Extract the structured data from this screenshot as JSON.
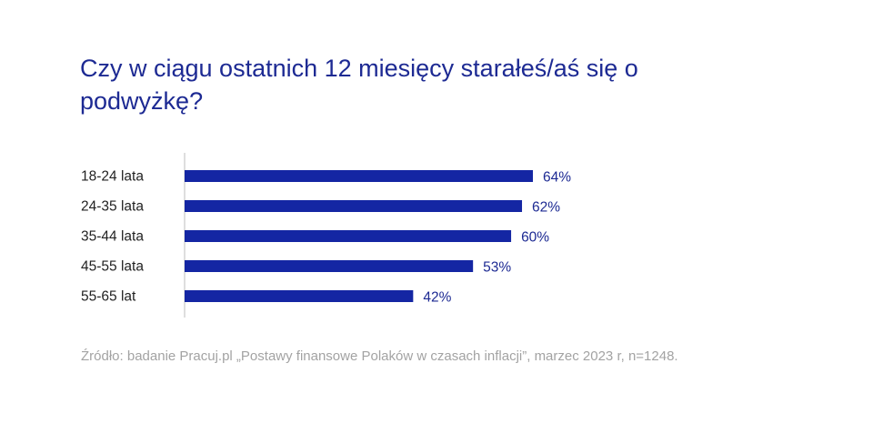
{
  "colors": {
    "bar": "#1426a3",
    "title": "#1d2a93",
    "axis": "#c8c8c8",
    "source": "#a3a3a3"
  },
  "chart_data": {
    "type": "bar",
    "orientation": "horizontal",
    "title": "Czy w ciągu ostatnich 12 miesięcy starałeś/aś się o podwyżkę?",
    "categories": [
      "18-24 lata",
      "24-35 lata",
      "35-44 lata",
      "45-55 lata",
      "55-65 lat"
    ],
    "values": [
      64,
      62,
      60,
      53,
      42
    ],
    "value_labels": [
      "64%",
      "62%",
      "60%",
      "53%",
      "42%"
    ],
    "xlim": [
      0,
      100
    ],
    "unit": "%",
    "grid": false,
    "legend": "none"
  },
  "source": "Źródło: badanie Pracuj.pl „Postawy finansowe Polaków w czasach inflacji”, marzec 2023 r, n=1248."
}
